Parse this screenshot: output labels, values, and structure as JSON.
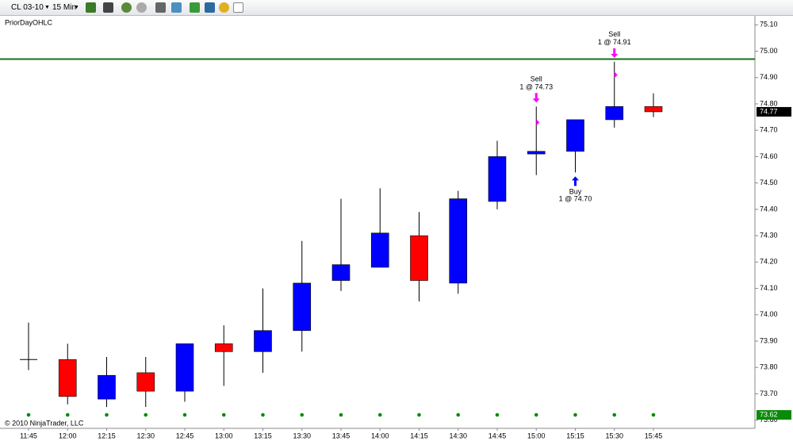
{
  "toolbar": {
    "instrument": "CL 03-10",
    "interval": "15 Min"
  },
  "chart_data": {
    "type": "candlestick",
    "indicator": "PriorDayOHLC",
    "copyright": "© 2010 NinjaTrader, LLC",
    "categories": [
      "11:45",
      "12:00",
      "12:15",
      "12:30",
      "12:45",
      "13:00",
      "13:15",
      "13:30",
      "13:45",
      "14:00",
      "14:15",
      "14:30",
      "14:45",
      "15:00",
      "15:15",
      "15:30",
      "15:45"
    ],
    "open": [
      73.83,
      73.83,
      73.68,
      73.78,
      73.71,
      73.89,
      73.86,
      73.94,
      74.13,
      74.18,
      74.3,
      74.12,
      74.43,
      74.61,
      74.62,
      74.74,
      74.79
    ],
    "high": [
      73.97,
      73.89,
      73.84,
      73.84,
      73.89,
      73.96,
      74.1,
      74.28,
      74.44,
      74.48,
      74.39,
      74.47,
      74.66,
      74.79,
      74.74,
      74.96,
      74.84
    ],
    "low": [
      73.79,
      73.66,
      73.65,
      73.65,
      73.67,
      73.73,
      73.78,
      73.86,
      74.09,
      74.18,
      74.05,
      74.08,
      74.4,
      74.53,
      74.54,
      74.71,
      74.75
    ],
    "close": [
      73.83,
      73.69,
      73.77,
      73.71,
      73.89,
      73.86,
      73.94,
      74.12,
      74.19,
      74.31,
      74.13,
      74.44,
      74.6,
      74.62,
      74.74,
      74.79,
      74.77
    ],
    "up_color": "#0000ff",
    "down_color": "#ff0000",
    "prior_high": 74.97,
    "prior_high_color": "#1a6b1a",
    "prior_low": 73.62,
    "prior_low_color": "#0a8a0a",
    "trades": [
      {
        "action": "Sell",
        "label": "1 @ 74.73",
        "price": 74.73,
        "index": 13,
        "color": "#ff00ff"
      },
      {
        "action": "Buy",
        "label": "1 @ 74.70",
        "price": 74.7,
        "index": 14,
        "color": "#0000ff"
      },
      {
        "action": "Sell",
        "label": "1 @ 74.91",
        "price": 74.91,
        "index": 15,
        "color": "#ff00ff"
      }
    ],
    "ylim": [
      73.569,
      75.134
    ],
    "yticks": [
      {
        "value": 73.6,
        "label": "73.60"
      },
      {
        "value": 73.7,
        "label": "73.70"
      },
      {
        "value": 73.8,
        "label": "73.80"
      },
      {
        "value": 73.9,
        "label": "73.90"
      },
      {
        "value": 74,
        "label": "74.00"
      },
      {
        "value": 74.1,
        "label": "74.10"
      },
      {
        "value": 74.2,
        "label": "74.20"
      },
      {
        "value": 74.3,
        "label": "74.30"
      },
      {
        "value": 74.4,
        "label": "74.40"
      },
      {
        "value": 74.5,
        "label": "74.50"
      },
      {
        "value": 74.6,
        "label": "74.60"
      },
      {
        "value": 74.7,
        "label": "74.70"
      },
      {
        "value": 74.8,
        "label": "74.80"
      },
      {
        "value": 74.9,
        "label": "74.90"
      },
      {
        "value": 75,
        "label": "75.00"
      },
      {
        "value": 75.1,
        "label": "75.10"
      }
    ]
  }
}
